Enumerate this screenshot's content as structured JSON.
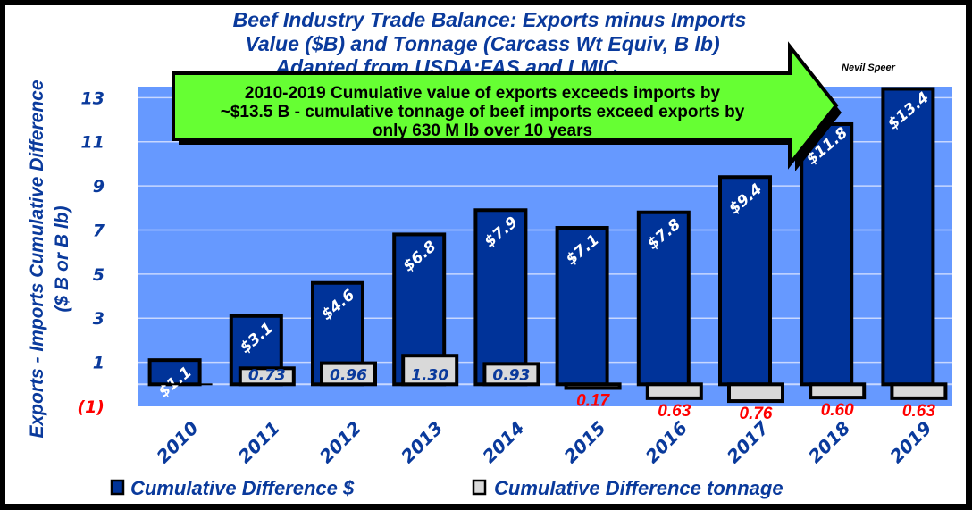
{
  "chart_data": {
    "type": "bar",
    "title": [
      "Beef Industry Trade Balance:  Exports minus Imports",
      "Value ($B) and Tonnage (Carcass Wt Equiv, B lb)",
      "Adapted from USDA:FAS and LMIC"
    ],
    "author": "Nevil Speer",
    "ylabel": [
      "Exports - Imports Cumulative Difference",
      "($ B or B lb)"
    ],
    "xlabel": "",
    "ylim": [
      -1,
      13.5
    ],
    "yticks": [
      13,
      11,
      9,
      7,
      5,
      3,
      1,
      -1
    ],
    "ytick_labels": [
      "13",
      "11",
      "9",
      "7",
      "5",
      "3",
      "1",
      "(1)"
    ],
    "grid": true,
    "legend_position": "bottom",
    "categories": [
      "2010",
      "2011",
      "2012",
      "2013",
      "2014",
      "2015",
      "2016",
      "2017",
      "2018",
      "2019"
    ],
    "series": [
      {
        "name": "Cumulative Difference $",
        "color": "#003399",
        "values": [
          1.1,
          3.1,
          4.6,
          6.8,
          7.9,
          7.1,
          7.8,
          9.4,
          11.8,
          13.4
        ],
        "labels": [
          "$1.1",
          "$3.1",
          "$4.6",
          "$6.8",
          "$7.9",
          "$7.1",
          "$7.8",
          "$9.4",
          "$11.8",
          "$13.4"
        ]
      },
      {
        "name": "Cumulative Difference tonnage",
        "color": "#d9d9d9",
        "values": [
          0,
          0.73,
          0.96,
          1.3,
          0.93,
          -0.17,
          -0.63,
          -0.76,
          -0.6,
          -0.63
        ],
        "labels": [
          "",
          "0.73",
          "0.96",
          "1.30",
          "0.93",
          "0.17",
          "0.63",
          "0.76",
          "0.60",
          "0.63"
        ]
      }
    ],
    "annotation": [
      "2010-2019 Cumulative value of exports exceeds imports by",
      "~$13.5 B - cumulative tonnage of beef imports exceed exports by",
      "only 630 M lb over 10 years"
    ],
    "colors": {
      "plot_bg": "#6699ff",
      "callout": "#66ff33",
      "negative_label": "#ff0000"
    }
  }
}
